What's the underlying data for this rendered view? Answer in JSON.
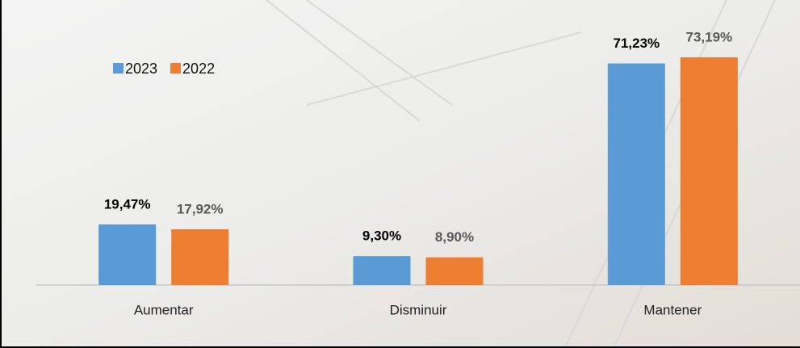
{
  "chart_data": {
    "type": "bar",
    "categories": [
      "Aumentar",
      "Disminuir",
      "Mantener"
    ],
    "series": [
      {
        "name": "2023",
        "color": "#5b9bd5",
        "values": [
          19.47,
          9.3,
          71.23
        ],
        "value_labels": [
          "19,47%",
          "9,30%",
          "71,23%"
        ],
        "label_color": "#000000"
      },
      {
        "name": "2022",
        "color": "#ed7d31",
        "values": [
          17.92,
          8.9,
          73.19
        ],
        "value_labels": [
          "17,92%",
          "8,90%",
          "73,19%"
        ],
        "label_color": "#595959"
      }
    ],
    "legend": "top-left"
  }
}
